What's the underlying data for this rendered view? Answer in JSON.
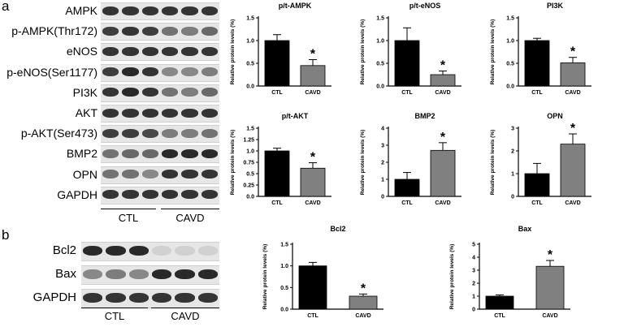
{
  "panel_a": {
    "letter": "a",
    "blots": [
      {
        "label": "AMPK",
        "ctl": [
          0.85,
          0.85,
          0.85
        ],
        "cavd": [
          0.85,
          0.85,
          0.85
        ]
      },
      {
        "label": "p-AMPK(Thr172)",
        "ctl": [
          0.8,
          0.85,
          0.8
        ],
        "cavd": [
          0.55,
          0.5,
          0.6
        ]
      },
      {
        "label": "eNOS",
        "ctl": [
          0.85,
          0.85,
          0.85
        ],
        "cavd": [
          0.85,
          0.85,
          0.85
        ]
      },
      {
        "label": "p-eNOS(Ser1177)",
        "ctl": [
          0.8,
          0.9,
          0.85
        ],
        "cavd": [
          0.45,
          0.45,
          0.5
        ]
      },
      {
        "label": "PI3K",
        "ctl": [
          0.85,
          0.9,
          0.85
        ],
        "cavd": [
          0.55,
          0.5,
          0.6
        ]
      },
      {
        "label": "AKT",
        "ctl": [
          0.85,
          0.85,
          0.85
        ],
        "cavd": [
          0.85,
          0.85,
          0.85
        ]
      },
      {
        "label": "p-AKT(Ser473)",
        "ctl": [
          0.8,
          0.8,
          0.75
        ],
        "cavd": [
          0.5,
          0.5,
          0.55
        ]
      },
      {
        "label": "BMP2",
        "ctl": [
          0.55,
          0.6,
          0.6
        ],
        "cavd": [
          0.9,
          0.9,
          0.9
        ]
      },
      {
        "label": "OPN",
        "ctl": [
          0.55,
          0.55,
          0.45
        ],
        "cavd": [
          0.85,
          0.85,
          0.85
        ]
      },
      {
        "label": "GAPDH",
        "ctl": [
          0.85,
          0.85,
          0.85
        ],
        "cavd": [
          0.85,
          0.85,
          0.85
        ]
      }
    ],
    "group_ctl": "CTL",
    "group_cavd": "CAVD"
  },
  "panel_b": {
    "letter": "b",
    "blots": [
      {
        "label": "Bcl2",
        "ctl": [
          0.9,
          0.9,
          0.9
        ],
        "cavd": [
          0.1,
          0.1,
          0.1
        ]
      },
      {
        "label": "Bax",
        "ctl": [
          0.45,
          0.5,
          0.45
        ],
        "cavd": [
          0.9,
          0.9,
          0.9
        ]
      },
      {
        "label": "GAPDH",
        "ctl": [
          0.85,
          0.85,
          0.85
        ],
        "cavd": [
          0.85,
          0.85,
          0.85
        ]
      }
    ],
    "group_ctl": "CTL",
    "group_cavd": "CAVD"
  },
  "colors": {
    "ctl": "#000000",
    "cavd": "#808080"
  },
  "chart_data": [
    {
      "id": "p-t-ampk",
      "type": "bar",
      "title": "p/t-AMPK",
      "ylabel": "Relative protein levels (%)",
      "categories": [
        "CTL",
        "CAVD"
      ],
      "values": [
        1.0,
        0.45
      ],
      "errors": [
        0.13,
        0.13
      ],
      "ylim": [
        0,
        1.5
      ],
      "yticks": [
        "0.0",
        "0.5",
        "1.0",
        "1.5"
      ],
      "tick_values": [
        0,
        0.5,
        1.0,
        1.5
      ],
      "significance": "*"
    },
    {
      "id": "p-t-enos",
      "type": "bar",
      "title": "p/t-eNOS",
      "ylabel": "Relative protein levels (%)",
      "categories": [
        "CTL",
        "CAVD"
      ],
      "values": [
        1.0,
        0.25
      ],
      "errors": [
        0.28,
        0.08
      ],
      "ylim": [
        0,
        1.5
      ],
      "yticks": [
        "0.0",
        "0.5",
        "1.0",
        "1.5"
      ],
      "tick_values": [
        0,
        0.5,
        1.0,
        1.5
      ],
      "significance": "*"
    },
    {
      "id": "pi3k",
      "type": "bar",
      "title": "PI3K",
      "ylabel": "Relative protein levels (%)",
      "categories": [
        "CTL",
        "CAVD"
      ],
      "values": [
        1.0,
        0.51
      ],
      "errors": [
        0.05,
        0.12
      ],
      "ylim": [
        0,
        1.5
      ],
      "yticks": [
        "0.0",
        "0.5",
        "1.0",
        "1.5"
      ],
      "tick_values": [
        0,
        0.5,
        1.0,
        1.5
      ],
      "significance": "*"
    },
    {
      "id": "p-t-akt",
      "type": "bar",
      "title": "p/t-AKT",
      "ylabel": "Relative protein levels (%)",
      "categories": [
        "CTL",
        "CAVD"
      ],
      "values": [
        1.0,
        0.62
      ],
      "errors": [
        0.06,
        0.12
      ],
      "ylim": [
        0,
        1.5
      ],
      "yticks": [
        "0.0",
        "0.25",
        "0.5",
        "0.75",
        "1.0",
        "1.25",
        "1.5"
      ],
      "tick_values": [
        0,
        0.25,
        0.5,
        0.75,
        1.0,
        1.25,
        1.5
      ],
      "significance": "*"
    },
    {
      "id": "bmp2",
      "type": "bar",
      "title": "BMP2",
      "ylabel": "Relative protein levels (%)",
      "categories": [
        "CTL",
        "CAVD"
      ],
      "values": [
        1.0,
        2.7
      ],
      "errors": [
        0.4,
        0.45
      ],
      "ylim": [
        0,
        4
      ],
      "yticks": [
        "0",
        "1",
        "2",
        "3",
        "4"
      ],
      "tick_values": [
        0,
        1,
        2,
        3,
        4
      ],
      "significance": "*"
    },
    {
      "id": "opn",
      "type": "bar",
      "title": "OPN",
      "ylabel": "Relative protein levels (%)",
      "categories": [
        "CTL",
        "CAVD"
      ],
      "values": [
        1.0,
        2.3
      ],
      "errors": [
        0.45,
        0.45
      ],
      "ylim": [
        0,
        3
      ],
      "yticks": [
        "0",
        "1",
        "2",
        "3"
      ],
      "tick_values": [
        0,
        1,
        2,
        3
      ],
      "significance": "*"
    },
    {
      "id": "bcl2",
      "type": "bar",
      "title": "Bcl2",
      "ylabel": "Relative protein levels (%)",
      "categories": [
        "CTL",
        "CAVD"
      ],
      "values": [
        1.0,
        0.3
      ],
      "errors": [
        0.08,
        0.05
      ],
      "ylim": [
        0,
        1.5
      ],
      "yticks": [
        "0.0",
        "0.5",
        "1.0",
        "1.5"
      ],
      "tick_values": [
        0,
        0.5,
        1.0,
        1.5
      ],
      "significance": "*"
    },
    {
      "id": "bax",
      "type": "bar",
      "title": "Bax",
      "ylabel": "Relative protein levels (%)",
      "categories": [
        "CTL",
        "CAVD"
      ],
      "values": [
        1.0,
        3.3
      ],
      "errors": [
        0.1,
        0.45
      ],
      "ylim": [
        0,
        5
      ],
      "yticks": [
        "0",
        "1",
        "2",
        "3",
        "4",
        "5"
      ],
      "tick_values": [
        0,
        1,
        2,
        3,
        4,
        5
      ],
      "significance": "*"
    }
  ]
}
